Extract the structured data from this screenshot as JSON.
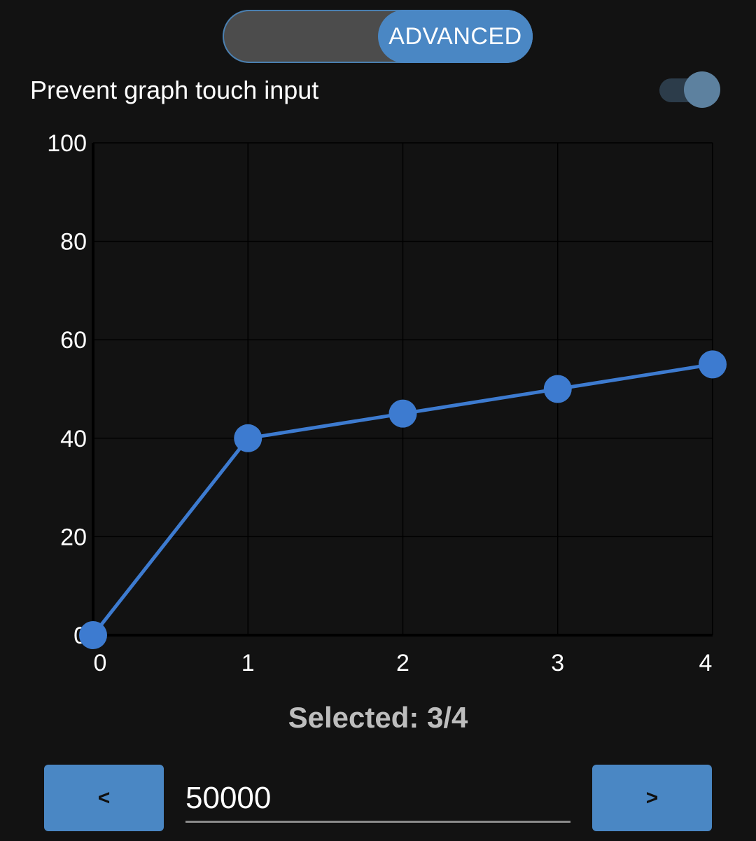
{
  "mode_toggle": {
    "selected_label": "ADVANCED",
    "accent_color": "#4a87c4"
  },
  "prevent_touch": {
    "label": "Prevent graph touch input",
    "enabled": true
  },
  "chart_data": {
    "type": "line",
    "x": [
      0,
      1,
      2,
      3,
      4
    ],
    "values": [
      0,
      40,
      45,
      50,
      55
    ],
    "xlim": [
      0,
      4
    ],
    "ylim": [
      0,
      100
    ],
    "x_ticks": [
      "0",
      "1",
      "2",
      "3",
      "4"
    ],
    "y_ticks": [
      "0",
      "20",
      "40",
      "60",
      "80",
      "100"
    ],
    "grid": true,
    "color": "#3d7bd0"
  },
  "selection": {
    "label": "Selected: 3/4"
  },
  "controls": {
    "prev_label": "<",
    "next_label": ">",
    "value": "50000"
  }
}
